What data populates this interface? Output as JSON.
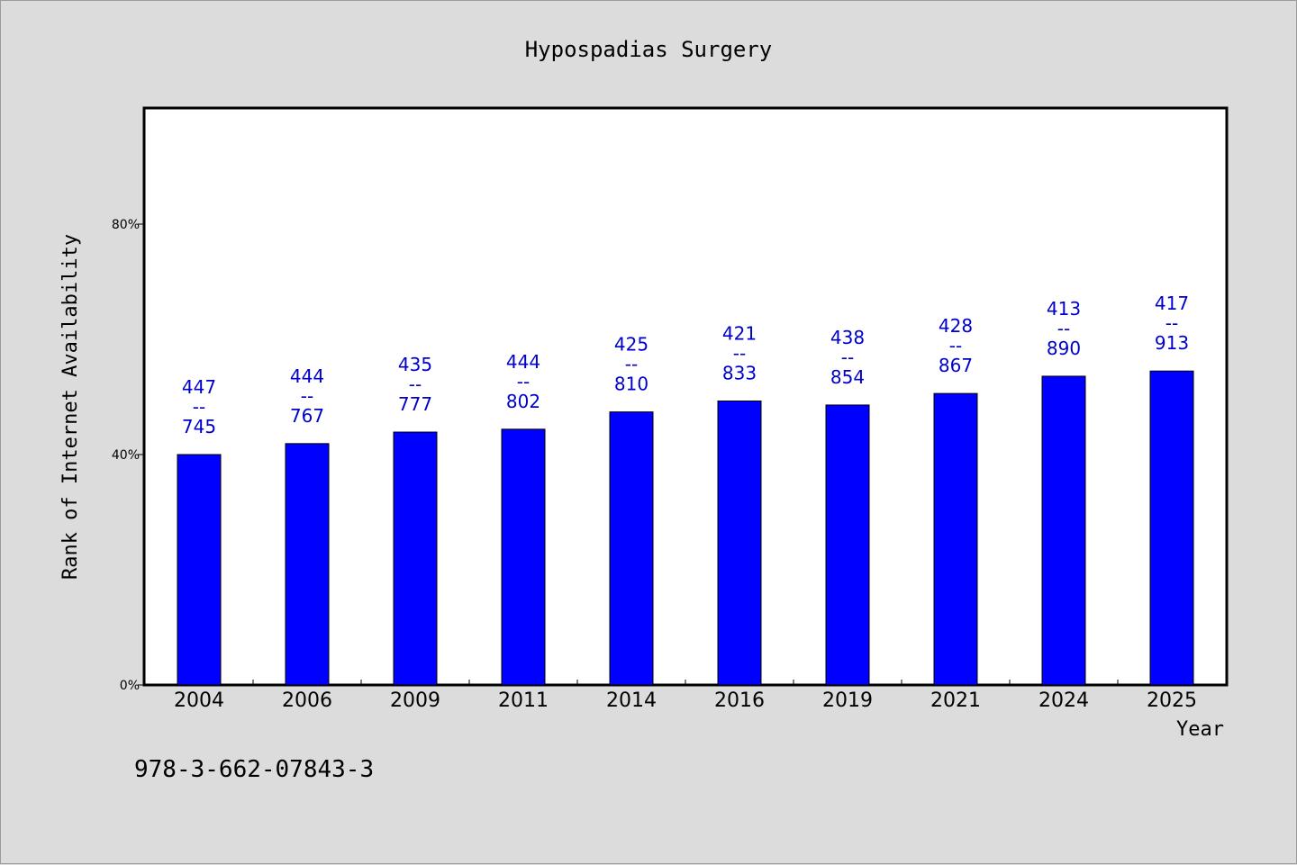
{
  "chart_data": {
    "type": "bar",
    "title": "Hypospadias Surgery",
    "xlabel": "Year",
    "ylabel": "Rank of Internet Availability",
    "categories": [
      "2004",
      "2006",
      "2009",
      "2011",
      "2014",
      "2016",
      "2019",
      "2021",
      "2024",
      "2025"
    ],
    "values": [
      40.0,
      41.9,
      43.9,
      44.4,
      47.4,
      49.3,
      48.6,
      50.6,
      53.6,
      54.5
    ],
    "rank": [
      "447",
      "444",
      "435",
      "444",
      "425",
      "421",
      "438",
      "428",
      "413",
      "417"
    ],
    "total": [
      "745",
      "767",
      "777",
      "802",
      "810",
      "833",
      "854",
      "867",
      "890",
      "913"
    ],
    "label_separator": "--",
    "ylim": [
      0,
      100
    ],
    "yticks": [
      0,
      40,
      80
    ],
    "ytick_labels": [
      "0%",
      "40%",
      "80%"
    ],
    "bar_color": "#0000ff",
    "label_color": "#0000cc",
    "grid": false,
    "legend": "none"
  },
  "footer": {
    "isbn": "978-3-662-07843-3"
  }
}
